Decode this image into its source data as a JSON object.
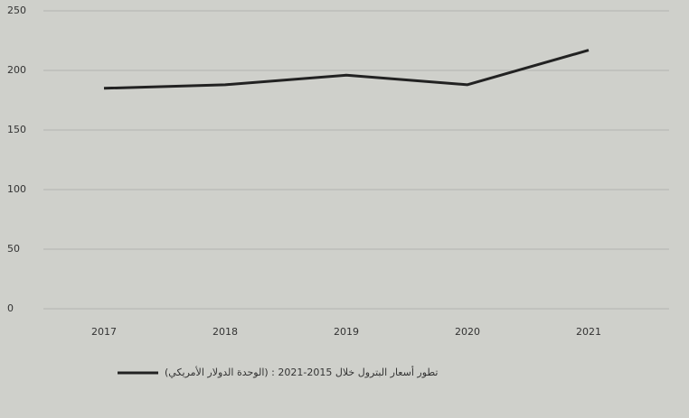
{
  "chart_data": {
    "type": "line",
    "categories": [
      "2017",
      "2018",
      "2019",
      "2020",
      "2021"
    ],
    "series": [
      {
        "name": "تطور أسعار البترول خلال 2015-2021 : (الوحدة الدولار الأمريكي)",
        "color": "#222222",
        "values": [
          185,
          188,
          196,
          188,
          217
        ]
      }
    ],
    "ylim": [
      0,
      250
    ],
    "yticks": [
      0,
      50,
      100,
      150,
      200,
      250
    ],
    "grid": true,
    "legend": "bottom"
  }
}
